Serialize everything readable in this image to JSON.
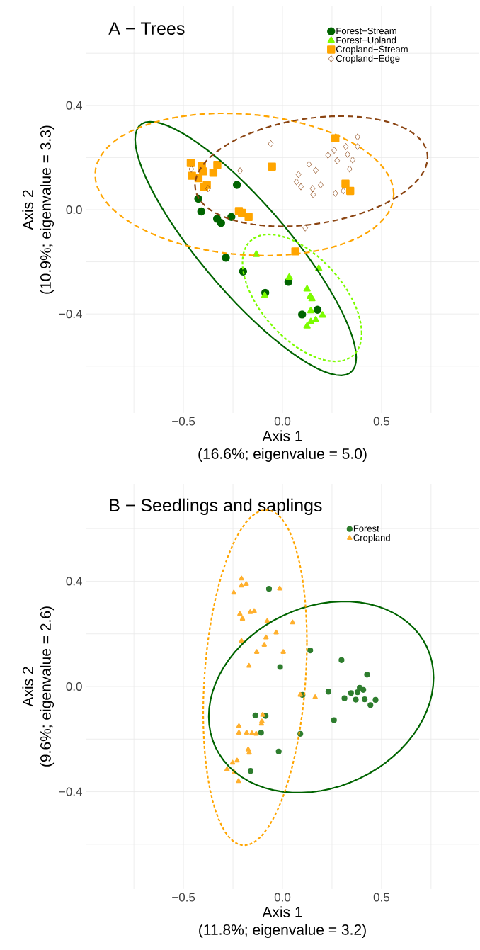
{
  "chart_data": [
    {
      "type": "scatter",
      "title": "A − Trees",
      "xlabel": "Axis 1\n(16.6%; eigenvalue = 5.0)",
      "ylabel": "Axis 2\n(10.9%; eigenvalue = 3.3)",
      "xlim": [
        -0.99,
        0.99
      ],
      "ylim": [
        -0.78,
        0.78
      ],
      "xticks": [
        {
          "value": -0.75,
          "label": null
        },
        {
          "value": -0.5,
          "label": "−0.5"
        },
        {
          "value": -0.25,
          "label": null
        },
        {
          "value": 0,
          "label": "0.0"
        },
        {
          "value": 0.25,
          "label": null
        },
        {
          "value": 0.5,
          "label": "0.5"
        },
        {
          "value": 0.75,
          "label": null
        }
      ],
      "yticks": [
        {
          "value": -0.6,
          "label": null
        },
        {
          "value": -0.4,
          "label": "−0.4"
        },
        {
          "value": -0.2,
          "label": null
        },
        {
          "value": 0,
          "label": "0.0"
        },
        {
          "value": 0.2,
          "label": null
        },
        {
          "value": 0.4,
          "label": "0.4"
        },
        {
          "value": 0.6,
          "label": null
        }
      ],
      "grid": true,
      "legend": "top right",
      "series": [
        {
          "name": "Forest−Stream",
          "color": "#006400",
          "marker": "circle",
          "x": [
            -0.23,
            -0.425,
            -0.41,
            -0.33,
            -0.31,
            -0.258,
            -0.286,
            -0.199,
            -0.087,
            0.03,
            0.099,
            0.177
          ],
          "values": [
            0.095,
            0.042,
            -0.007,
            -0.035,
            -0.051,
            -0.028,
            -0.184,
            -0.237,
            -0.319,
            -0.277,
            -0.402,
            -0.384
          ]
        },
        {
          "name": "Forest−Upland",
          "color": "#7cfc00",
          "marker": "triangle",
          "x": [
            -0.132,
            -0.09,
            0.034,
            0.183,
            0.124,
            0.14,
            0.149,
            0.143,
            0.202,
            0.168,
            0.143,
            0.124
          ],
          "values": [
            -0.172,
            -0.33,
            -0.26,
            -0.226,
            -0.305,
            -0.333,
            -0.342,
            -0.388,
            -0.405,
            -0.423,
            -0.43,
            -0.447
          ]
        },
        {
          "name": "Cropland−Stream",
          "color": "#ffa500",
          "marker": "square",
          "x": [
            -0.463,
            -0.407,
            -0.329,
            -0.457,
            -0.424,
            -0.401,
            -0.349,
            -0.396,
            -0.382,
            -0.053,
            0.267,
            0.318,
            0.342,
            -0.22,
            -0.205,
            -0.171,
            0.065
          ],
          "values": [
            0.179,
            0.167,
            0.172,
            0.13,
            0.121,
            0.147,
            0.142,
            0.086,
            0.095,
            0.165,
            0.274,
            0.1,
            0.072,
            -0.005,
            -0.012,
            -0.028,
            -0.16
          ]
        },
        {
          "name": "Cropland−Edge",
          "color": "#8b4513",
          "marker": "diamond",
          "x": [
            -0.46,
            -0.376,
            -0.214,
            -0.059,
            0.081,
            0.071,
            0.093,
            0.134,
            0.168,
            0.152,
            0.155,
            0.193,
            0.23,
            0.261,
            0.276,
            0.32,
            0.329,
            0.354,
            0.339,
            0.379,
            0.379,
            0.267,
            0.307,
            0.115
          ],
          "values": [
            0.156,
            0.081,
            0.149,
            0.253,
            0.135,
            0.107,
            0.088,
            0.174,
            0.151,
            0.081,
            0.058,
            0.095,
            0.209,
            0.228,
            0.188,
            0.242,
            0.212,
            0.191,
            0.156,
            0.279,
            0.242,
            0.063,
            0.072,
            -0.07
          ]
        }
      ]
    },
    {
      "type": "scatter",
      "title": "B − Seedlings and saplings",
      "xlabel": "Axis 1\n(11.8%; eigenvalue = 3.2)",
      "ylabel": "Axis 2\n(9.6%; eigenvalue = 2.6)",
      "xlim": [
        -0.99,
        0.99
      ],
      "ylim": [
        -0.77,
        0.77
      ],
      "xticks": [
        {
          "value": -0.75,
          "label": null
        },
        {
          "value": -0.5,
          "label": "−0.5"
        },
        {
          "value": -0.25,
          "label": null
        },
        {
          "value": 0,
          "label": "0.0"
        },
        {
          "value": 0.25,
          "label": null
        },
        {
          "value": 0.5,
          "label": "0.5"
        },
        {
          "value": 0.75,
          "label": null
        }
      ],
      "yticks": [
        {
          "value": -0.6,
          "label": null
        },
        {
          "value": -0.4,
          "label": "−0.4"
        },
        {
          "value": -0.2,
          "label": null
        },
        {
          "value": 0,
          "label": "0.0"
        },
        {
          "value": 0.2,
          "label": null
        },
        {
          "value": 0.4,
          "label": "0.4"
        },
        {
          "value": 0.6,
          "label": null
        }
      ],
      "grid": true,
      "legend": "top right",
      "series": [
        {
          "name": "Forest",
          "color": "#2e7d2e",
          "marker": "circle",
          "x": [
            -0.068,
            0.14,
            -0.012,
            0.298,
            0.427,
            0.39,
            0.408,
            0.379,
            0.346,
            0.232,
            0.313,
            0.37,
            0.415,
            0.47,
            0.444,
            0.101,
            0.26,
            0.09,
            -0.137,
            -0.085,
            -0.108,
            -0.019,
            -0.161
          ],
          "values": [
            0.371,
            0.137,
            0.074,
            0.1,
            0.045,
            -0.005,
            -0.013,
            -0.022,
            -0.025,
            -0.02,
            -0.045,
            -0.05,
            -0.049,
            -0.051,
            -0.071,
            -0.032,
            -0.128,
            -0.18,
            -0.11,
            -0.112,
            -0.176,
            -0.247,
            -0.321
          ]
        },
        {
          "name": "Cropland",
          "color": "#ffb02e",
          "marker": "triangle",
          "x": [
            -0.207,
            -0.207,
            -0.183,
            -0.246,
            -0.014,
            -0.215,
            -0.202,
            -0.163,
            -0.143,
            -0.077,
            0.051,
            -0.032,
            -0.083,
            -0.207,
            -0.092,
            -0.13,
            0.004,
            -0.169,
            0.09,
            0.165,
            -0.1,
            -0.104,
            -0.106,
            -0.22,
            -0.22,
            -0.181,
            -0.154,
            -0.133,
            -0.173,
            -0.168,
            -0.252,
            -0.229,
            -0.28,
            -0.243,
            -0.222
          ],
          "values": [
            0.41,
            0.383,
            0.389,
            0.356,
            0.372,
            0.275,
            0.257,
            0.282,
            0.286,
            0.248,
            0.243,
            0.205,
            0.186,
            0.173,
            0.158,
            0.131,
            0.131,
            0.078,
            -0.032,
            -0.041,
            -0.108,
            -0.133,
            -0.142,
            -0.151,
            -0.176,
            -0.176,
            -0.178,
            -0.18,
            -0.24,
            -0.252,
            -0.29,
            -0.282,
            -0.315,
            -0.327,
            -0.36
          ]
        }
      ]
    }
  ]
}
